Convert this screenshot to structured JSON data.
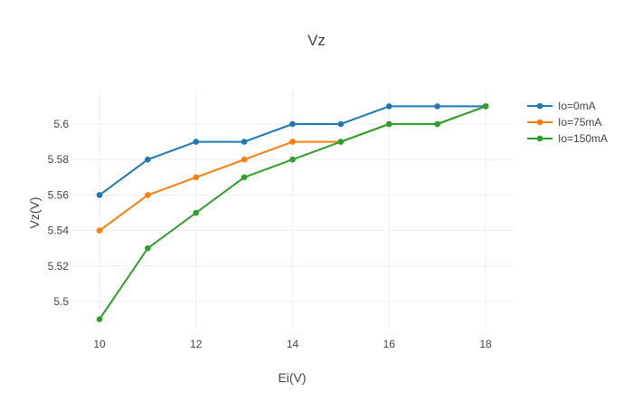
{
  "chart_data": {
    "type": "line",
    "title": "Vz",
    "xlabel": "Ei(V)",
    "ylabel": "Vz(V)",
    "xlim": [
      9.5,
      18.6
    ],
    "ylim": [
      5.482,
      5.619
    ],
    "xticks": [
      10,
      12,
      14,
      16,
      18
    ],
    "yticks": [
      5.5,
      5.52,
      5.54,
      5.56,
      5.58,
      5.6
    ],
    "ytick_labels": [
      "5.5",
      "5.52",
      "5.54",
      "5.56",
      "5.58",
      "5.6"
    ],
    "grid": true,
    "legend_position": "top-right",
    "x": [
      10,
      11,
      12,
      13,
      14,
      15,
      16,
      17,
      18
    ],
    "series": [
      {
        "name": "Io=0mA",
        "color": "#1f77b4",
        "values": [
          5.56,
          5.58,
          5.59,
          5.59,
          5.6,
          5.6,
          5.61,
          5.61,
          5.61
        ]
      },
      {
        "name": "Io=75mA",
        "color": "#ff7f0e",
        "values": [
          5.54,
          5.56,
          5.57,
          5.58,
          5.59,
          5.59,
          5.6,
          5.6,
          5.61
        ]
      },
      {
        "name": "Io=150mA",
        "color": "#2ca02c",
        "values": [
          5.49,
          5.53,
          5.55,
          5.57,
          5.58,
          5.59,
          5.6,
          5.6,
          5.61
        ]
      }
    ]
  }
}
